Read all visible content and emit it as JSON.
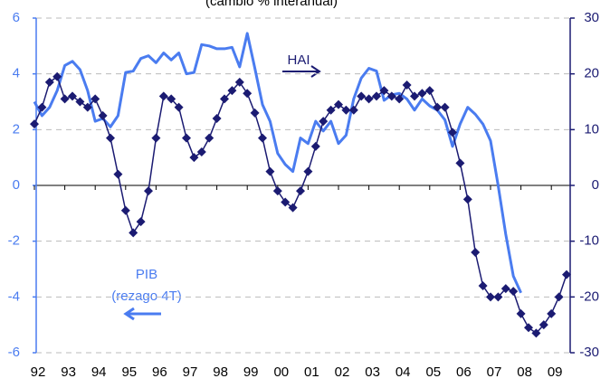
{
  "chart_data": {
    "type": "line",
    "title": "(cambio % interanual)",
    "annotations": [
      "HAI",
      "PIB",
      "(rezago 4T)"
    ],
    "xlim": [
      1992,
      2009.5
    ],
    "xticks": [
      {
        "value": 1992,
        "label": "92"
      },
      {
        "value": 1993,
        "label": "93"
      },
      {
        "value": 1994,
        "label": "94"
      },
      {
        "value": 1995,
        "label": "95"
      },
      {
        "value": 1996,
        "label": "96"
      },
      {
        "value": 1997,
        "label": "97"
      },
      {
        "value": 1998,
        "label": "98"
      },
      {
        "value": 1999,
        "label": "99"
      },
      {
        "value": 2000,
        "label": "00"
      },
      {
        "value": 2001,
        "label": "01"
      },
      {
        "value": 2002,
        "label": "02"
      },
      {
        "value": 2003,
        "label": "03"
      },
      {
        "value": 2004,
        "label": "04"
      },
      {
        "value": 2005,
        "label": "05"
      },
      {
        "value": 2006,
        "label": "06"
      },
      {
        "value": 2007,
        "label": "07"
      },
      {
        "value": 2008,
        "label": "08"
      },
      {
        "value": 2009,
        "label": "09"
      }
    ],
    "ylim": [
      -6,
      6
    ],
    "yticks": [
      -6,
      -4,
      -2,
      0,
      2,
      4,
      6
    ],
    "y2lim": [
      -30,
      30
    ],
    "y2ticks": [
      -30,
      -20,
      -10,
      0,
      10,
      20,
      30
    ],
    "grid": true,
    "series": [
      {
        "name": "PIB",
        "color": "#4a7cf0",
        "axis": "y",
        "x": [
          1992,
          1992.25,
          1992.5,
          1992.75,
          1993,
          1993.25,
          1993.5,
          1993.75,
          1994,
          1994.25,
          1994.5,
          1994.75,
          1995,
          1995.25,
          1995.5,
          1995.75,
          1996,
          1996.25,
          1996.5,
          1996.75,
          1997,
          1997.25,
          1997.5,
          1997.75,
          1998,
          1998.25,
          1998.5,
          1998.75,
          1999,
          1999.25,
          1999.5,
          1999.75,
          2000,
          2000.25,
          2000.5,
          2000.75,
          2001,
          2001.25,
          2001.5,
          2001.75,
          2002,
          2002.25,
          2002.5,
          2002.75,
          2003,
          2003.25,
          2003.5,
          2003.75,
          2004,
          2004.25,
          2004.5,
          2004.75,
          2005,
          2005.25,
          2005.5,
          2005.75,
          2006,
          2006.25,
          2006.5,
          2006.75,
          2007,
          2007.25,
          2007.5,
          2007.75,
          2008
        ],
        "values": [
          3.0,
          2.5,
          2.8,
          3.4,
          4.3,
          4.45,
          4.15,
          3.4,
          2.3,
          2.4,
          2.1,
          2.5,
          4.05,
          4.1,
          4.55,
          4.65,
          4.4,
          4.75,
          4.5,
          4.75,
          4.0,
          4.05,
          5.05,
          5.0,
          4.9,
          4.9,
          4.95,
          4.25,
          5.45,
          4.2,
          2.9,
          2.3,
          1.15,
          0.75,
          0.5,
          1.7,
          1.5,
          2.3,
          1.95,
          2.3,
          1.5,
          1.8,
          3.1,
          3.85,
          4.2,
          4.1,
          3.05,
          3.25,
          3.3,
          3.1,
          2.7,
          3.1,
          2.85,
          2.7,
          2.35,
          1.4,
          2.2,
          2.8,
          2.55,
          2.2,
          1.6,
          0,
          -1.75,
          -3.25,
          -3.85
        ]
      },
      {
        "name": "HAI",
        "color": "#1b1b72",
        "axis": "y2",
        "x": [
          1992,
          1992.25,
          1992.5,
          1992.75,
          1993,
          1993.25,
          1993.5,
          1993.75,
          1994,
          1994.25,
          1994.5,
          1994.75,
          1995,
          1995.25,
          1995.5,
          1995.75,
          1996,
          1996.25,
          1996.5,
          1996.75,
          1997,
          1997.25,
          1997.5,
          1997.75,
          1998,
          1998.25,
          1998.5,
          1998.75,
          1999,
          1999.25,
          1999.5,
          1999.75,
          2000,
          2000.25,
          2000.5,
          2000.75,
          2001,
          2001.25,
          2001.5,
          2001.75,
          2002,
          2002.25,
          2002.5,
          2002.75,
          2003,
          2003.25,
          2003.5,
          2003.75,
          2004,
          2004.25,
          2004.5,
          2004.75,
          2005,
          2005.25,
          2005.5,
          2005.75,
          2006,
          2006.25,
          2006.5,
          2006.75,
          2007,
          2007.25,
          2007.5,
          2007.75,
          2008,
          2008.25,
          2008.5,
          2008.75,
          2009,
          2009.25,
          2009.5
        ],
        "values": [
          11,
          14,
          18.5,
          19.5,
          15.5,
          16,
          15,
          14,
          15.5,
          12.5,
          8.5,
          2,
          -4.5,
          -8.5,
          -6.5,
          -1,
          8.5,
          16,
          15.5,
          14,
          8.5,
          5,
          6,
          8.5,
          12,
          15.5,
          17,
          18.5,
          16.5,
          13,
          8.5,
          2.5,
          -1,
          -3,
          -4,
          -1,
          2.5,
          7,
          11.5,
          13.5,
          14.5,
          13.5,
          13.5,
          16,
          15.5,
          16,
          17,
          16,
          15.5,
          18,
          16,
          16.5,
          17,
          14,
          14,
          9.5,
          4,
          -2.5,
          -12,
          -18,
          -20,
          -20,
          -18.5,
          -19,
          -23,
          -25.5,
          -26.5,
          -25,
          -23,
          -20,
          -16
        ]
      }
    ]
  }
}
